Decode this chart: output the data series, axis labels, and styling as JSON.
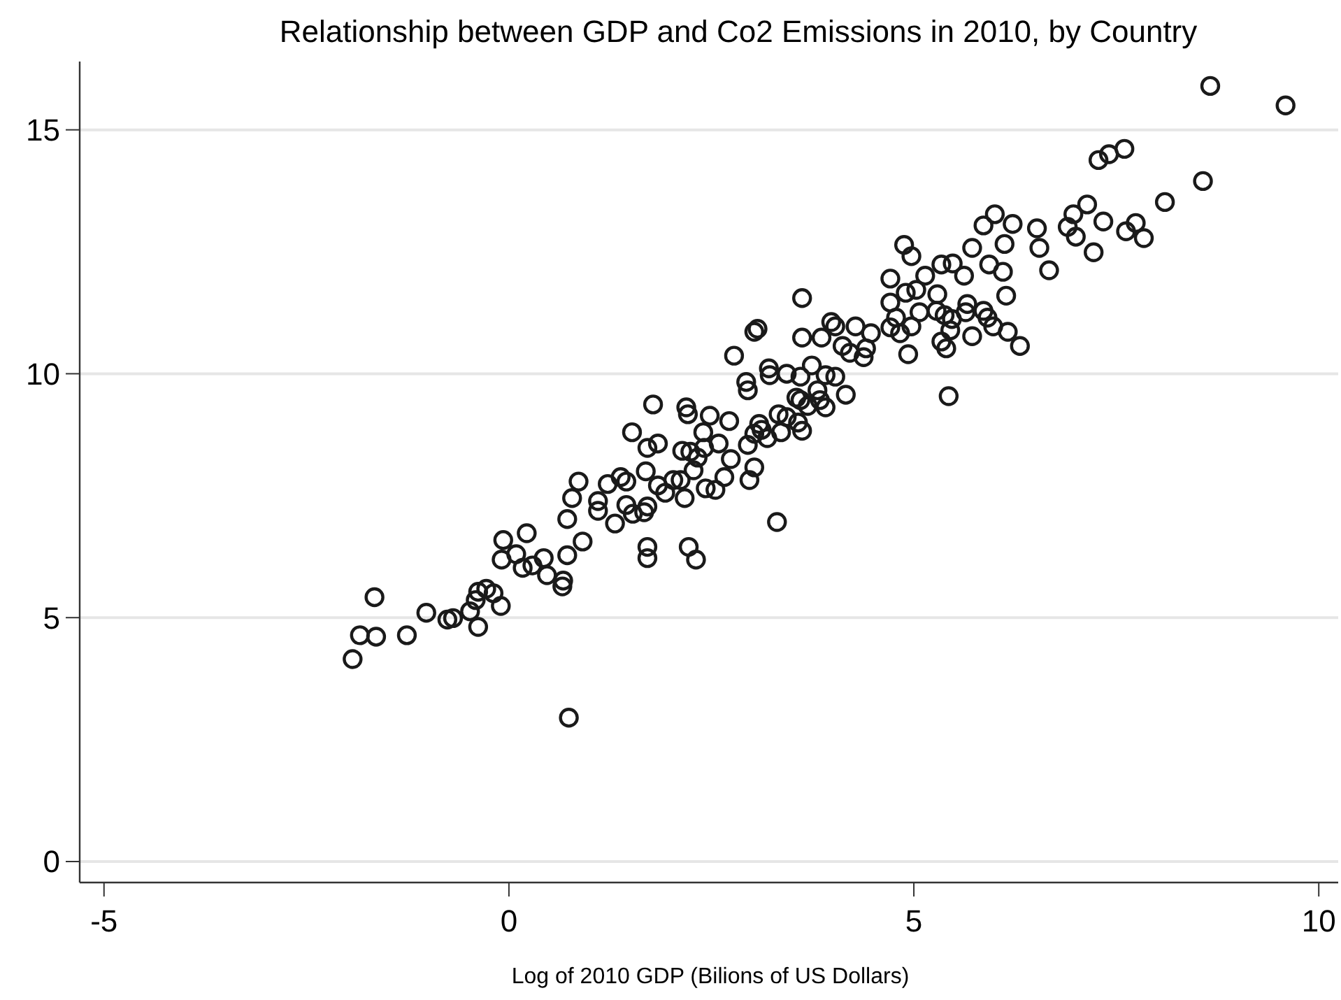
{
  "chart_data": {
    "type": "scatter",
    "title": "Relationship between GDP and Co2 Emissions in 2010, by Country",
    "xlabel": "Log of 2010 GDP (Bilions of US Dollars)",
    "xlim": [
      -5.3,
      10.24
    ],
    "xticks": [
      -5,
      0,
      5,
      10
    ],
    "ylim": [
      -0.43,
      16.4
    ],
    "yticks": [
      0,
      5,
      10,
      15
    ],
    "grid": "y",
    "marker": "circle",
    "series": [
      {
        "color": "#1a1a1a",
        "x": [
          -1.93,
          -1.84,
          -1.64,
          -1.66,
          -1.26,
          -1.02,
          -0.76,
          -0.69,
          -0.48,
          -0.38,
          -0.41,
          -0.38,
          -0.28,
          -0.19,
          -0.1,
          -0.09,
          -0.07,
          0.09,
          0.22,
          0.17,
          0.29,
          0.43,
          0.47,
          0.66,
          0.67,
          0.72,
          0.72,
          0.78,
          0.86,
          0.91,
          0.74,
          1.1,
          1.1,
          1.22,
          1.31,
          1.38,
          1.45,
          1.52,
          1.71,
          1.84,
          1.45,
          1.53,
          1.67,
          1.71,
          1.69,
          1.71,
          1.71,
          1.84,
          1.93,
          1.78,
          3.62,
          3.03,
          3.07,
          2.78,
          3.62,
          3.86,
          3.98,
          4.03,
          4.28,
          4.47,
          4.12,
          4.21,
          4.38,
          4.41,
          4.71,
          4.71,
          4.78,
          4.71,
          4.83,
          4.93,
          4.9,
          4.97,
          3.21,
          3.22,
          3.43,
          3.6,
          3.74,
          3.91,
          4.03,
          2.93,
          2.95,
          3.55,
          3.6,
          3.81,
          3.84,
          3.69,
          3.91,
          4.16,
          3.33,
          3.43,
          3.57,
          3.62,
          3.36,
          3.09,
          3.12,
          3.03,
          3.19,
          2.95,
          3.03,
          2.97,
          3.31,
          2.74,
          2.66,
          2.55,
          2.43,
          2.59,
          2.72,
          2.48,
          2.4,
          2.19,
          2.21,
          2.14,
          2.24,
          2.33,
          2.41,
          2.28,
          2.12,
          2.03,
          2.17,
          2.22,
          2.31,
          7.6,
          7.41,
          7.28,
          8.57,
          8.1,
          7.14,
          6.97,
          6.9,
          7.0,
          7.34,
          7.22,
          7.62,
          7.74,
          7.84,
          6.52,
          6.55,
          6.67,
          6.0,
          5.86,
          6.22,
          6.12,
          5.72,
          4.88,
          4.97,
          5.34,
          5.48,
          5.62,
          5.14,
          5.03,
          5.93,
          6.1,
          6.14,
          5.29,
          5.07,
          5.28,
          5.38,
          5.47,
          5.66,
          5.64,
          5.86,
          5.91,
          5.98,
          6.16,
          6.31,
          5.72,
          5.45,
          5.34,
          5.4,
          5.43,
          8.66,
          9.59
        ],
        "values": [
          4.15,
          4.64,
          4.61,
          5.42,
          4.64,
          5.1,
          4.96,
          4.99,
          5.13,
          4.81,
          5.36,
          5.53,
          5.59,
          5.5,
          5.24,
          6.19,
          6.59,
          6.3,
          6.73,
          6.02,
          6.07,
          6.22,
          5.87,
          5.64,
          5.76,
          6.28,
          7.02,
          7.45,
          7.79,
          6.56,
          2.95,
          7.39,
          7.19,
          7.74,
          6.93,
          7.88,
          7.79,
          8.8,
          8.48,
          8.57,
          7.31,
          7.13,
          7.16,
          7.28,
          8.0,
          6.45,
          6.22,
          7.71,
          7.56,
          9.37,
          11.55,
          10.86,
          10.92,
          10.37,
          10.74,
          10.74,
          11.06,
          10.97,
          10.97,
          10.83,
          10.57,
          10.43,
          10.34,
          10.52,
          11.95,
          11.46,
          11.15,
          10.95,
          10.83,
          10.4,
          11.66,
          10.97,
          10.11,
          9.97,
          10.0,
          9.94,
          10.17,
          9.97,
          9.94,
          9.83,
          9.66,
          9.51,
          9.46,
          9.66,
          9.46,
          9.34,
          9.31,
          9.57,
          9.17,
          9.11,
          9.0,
          8.83,
          8.8,
          8.97,
          8.85,
          8.77,
          8.68,
          8.54,
          8.08,
          7.82,
          6.96,
          8.25,
          7.88,
          7.62,
          7.65,
          8.57,
          9.03,
          9.14,
          8.8,
          9.31,
          9.17,
          8.42,
          8.4,
          8.28,
          8.48,
          8.02,
          7.82,
          7.82,
          7.45,
          6.45,
          6.19,
          14.61,
          14.5,
          14.38,
          13.95,
          13.52,
          13.47,
          13.27,
          13.01,
          12.81,
          13.12,
          12.49,
          12.92,
          13.09,
          12.78,
          12.98,
          12.58,
          12.12,
          13.27,
          13.04,
          13.07,
          12.66,
          12.58,
          12.64,
          12.41,
          12.24,
          12.26,
          12.01,
          12.01,
          11.72,
          12.24,
          12.09,
          11.6,
          11.63,
          11.26,
          11.29,
          11.2,
          11.12,
          11.43,
          11.26,
          11.29,
          11.15,
          10.97,
          10.86,
          10.57,
          10.77,
          10.89,
          10.66,
          10.52,
          9.54,
          15.9,
          15.5
        ]
      }
    ]
  }
}
